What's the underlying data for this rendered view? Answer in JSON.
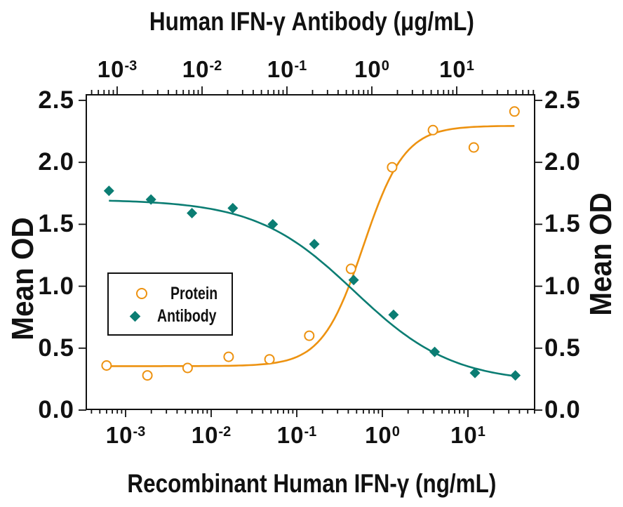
{
  "figure": {
    "background": "#ffffff",
    "text_color": "#111111"
  },
  "chart_data": {
    "type": "scatter",
    "grid": false,
    "legend_position": "inside-middle-left",
    "x_top_axis": {
      "title": "Human IFN-γ Antibody (μg/mL)",
      "unit": "μg/mL",
      "scale": "log",
      "log_min": -3.364,
      "log_max": 1.917,
      "decade_exponents": [
        -3,
        -2,
        -1,
        0,
        1
      ],
      "tick_labels": [
        "10⁻³",
        "10⁻²",
        "10⁻¹",
        "10⁰",
        "10¹"
      ]
    },
    "x_bottom_axis": {
      "title": "Recombinant Human IFN-γ (ng/mL)",
      "unit": "ng/mL",
      "scale": "log",
      "log_min": -3.459,
      "log_max": 1.779,
      "decade_exponents": [
        -3,
        -2,
        -1,
        0,
        1
      ],
      "tick_labels": [
        "10⁻³",
        "10⁻²",
        "10⁻¹",
        "10⁰",
        "10¹"
      ]
    },
    "y_axis": {
      "title": "Mean OD",
      "min": 0,
      "max_display": 2.545,
      "ticks": [
        0.0,
        0.5,
        1.0,
        1.5,
        2.0,
        2.5
      ],
      "tick_labels": [
        "0.0",
        "0.5",
        "1.0",
        "1.5",
        "2.0",
        "2.5"
      ]
    },
    "y_axis_right": {
      "title": "Mean OD",
      "tick_labels": [
        "0.0",
        "0.5",
        "1.0",
        "1.5",
        "2.0",
        "2.5"
      ]
    },
    "series": [
      {
        "name": "Protein",
        "marker": "open-circle",
        "color": "#ED9210",
        "axis": "bottom",
        "x": [
          0.0006,
          0.0018,
          0.0053,
          0.016,
          0.048,
          0.14,
          0.43,
          1.3,
          3.9,
          11.7,
          35
        ],
        "y": [
          0.36,
          0.28,
          0.34,
          0.43,
          0.41,
          0.6,
          1.14,
          1.96,
          2.26,
          2.12,
          2.41
        ],
        "fit": {
          "low": 0.355,
          "high": 2.295,
          "c50": 0.6,
          "hill": 1.8,
          "direction": "up",
          "x_start": 0.0006,
          "x_end": 35
        }
      },
      {
        "name": "Antibody",
        "marker": "filled-diamond",
        "color": "#0B7D73",
        "axis": "top",
        "x": [
          0.0008,
          0.0025,
          0.0076,
          0.023,
          0.068,
          0.21,
          0.61,
          1.8,
          5.5,
          16.4,
          49
        ],
        "y": [
          1.77,
          1.7,
          1.59,
          1.63,
          1.5,
          1.34,
          1.05,
          0.77,
          0.47,
          0.3,
          0.28
        ],
        "fit": {
          "low": 0.22,
          "high": 1.7,
          "c50": 0.62,
          "hill": 0.75,
          "direction": "down",
          "x_start": 0.0008,
          "x_end": 49
        }
      }
    ]
  }
}
